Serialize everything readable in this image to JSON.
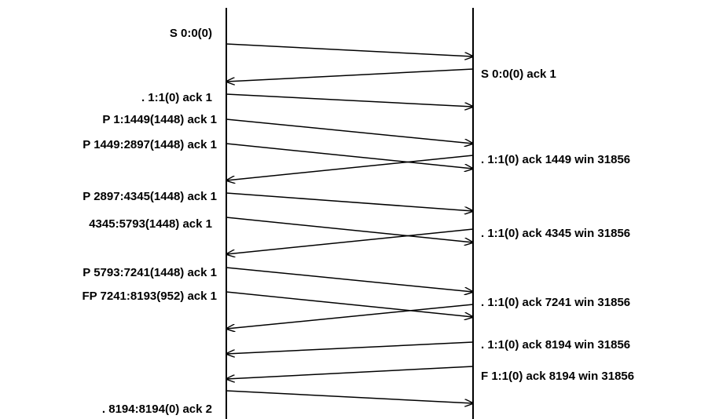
{
  "diagram": {
    "stroke_color": "#000000",
    "background_color": "#ffffff",
    "left_labels": [
      "S 0:0(0)",
      ". 1:1(0) ack 1",
      "P 1:1449(1448) ack 1",
      "P 1449:2897(1448) ack 1",
      "P 2897:4345(1448) ack 1",
      "4345:5793(1448) ack 1",
      "P 5793:7241(1448) ack 1",
      "FP 7241:8193(952) ack 1",
      ". 8194:8194(0) ack 2"
    ],
    "right_labels": [
      "S 0:0(0) ack 1",
      ". 1:1(0) ack 1449 win 31856",
      ". 1:1(0) ack 4345 win 31856",
      ". 1:1(0) ack 7241 win 31856",
      ". 1:1(0) ack 8194 win 31856",
      "F 1:1(0) ack 8194 win 31856"
    ],
    "messages": [
      {
        "direction": "left-to-right",
        "label_ref": "left_labels.0"
      },
      {
        "direction": "right-to-left",
        "label_ref": "right_labels.0"
      },
      {
        "direction": "left-to-right",
        "label_ref": "left_labels.1"
      },
      {
        "direction": "left-to-right",
        "label_ref": "left_labels.2"
      },
      {
        "direction": "left-to-right",
        "label_ref": "left_labels.3"
      },
      {
        "direction": "right-to-left",
        "label_ref": "right_labels.1"
      },
      {
        "direction": "left-to-right",
        "label_ref": "left_labels.4"
      },
      {
        "direction": "left-to-right",
        "label_ref": "left_labels.5"
      },
      {
        "direction": "right-to-left",
        "label_ref": "right_labels.2"
      },
      {
        "direction": "left-to-right",
        "label_ref": "left_labels.6"
      },
      {
        "direction": "left-to-right",
        "label_ref": "left_labels.7"
      },
      {
        "direction": "right-to-left",
        "label_ref": "right_labels.3"
      },
      {
        "direction": "right-to-left",
        "label_ref": "right_labels.4"
      },
      {
        "direction": "right-to-left",
        "label_ref": "right_labels.5"
      },
      {
        "direction": "left-to-right",
        "label_ref": "left_labels.8"
      }
    ]
  }
}
